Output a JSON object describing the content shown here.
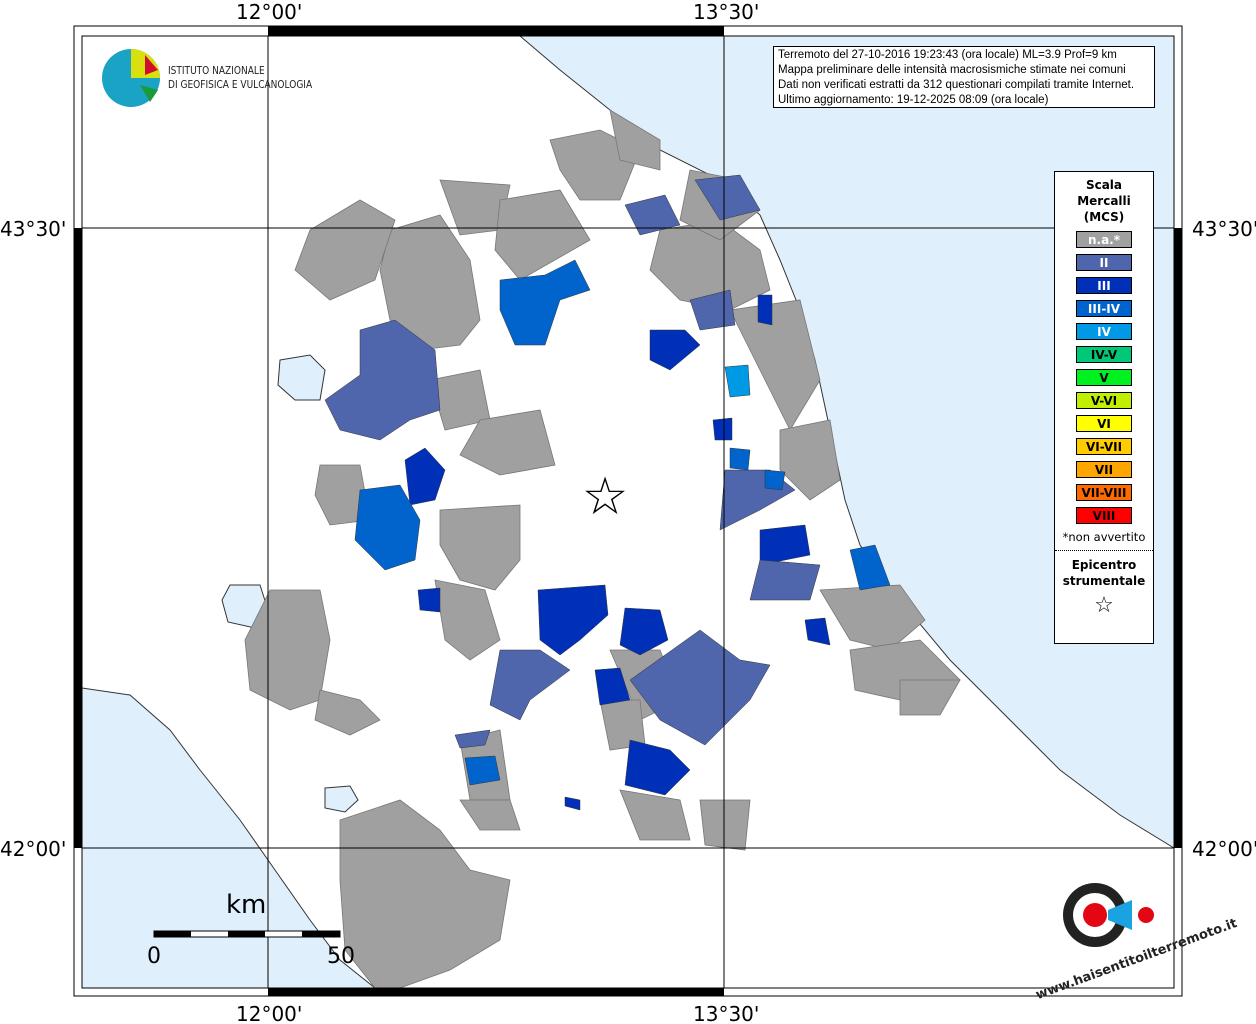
{
  "coords": {
    "lon_left": "12°00'",
    "lon_right": "13°30'",
    "lat_top": "43°30'",
    "lat_bottom": "42°00'"
  },
  "info": {
    "lines": [
      "Terremoto del 27-10-2016 19:23:43 (ora locale) ML=3.9 Prof=9 km",
      "Mappa preliminare delle intensità macrosismiche stimate nei comuni",
      "Dati non verificati estratti da 312 questionari compilati tramite Internet.",
      "Ultimo aggiornamento: 19-12-2025 08:09 (ora locale)"
    ]
  },
  "logo": {
    "line1": "ISTITUTO NAZIONALE",
    "line2": "DI GEOFISICA E VULCANOLOGIA",
    "hst": "www.haisentitoilterremoto.it"
  },
  "legend": {
    "title": [
      "Scala",
      "Mercalli",
      "(MCS)"
    ],
    "items": [
      {
        "label": "n.a.*",
        "color": "#a0a0a0",
        "text": "#fff"
      },
      {
        "label": "II",
        "color": "#4f66ad",
        "text": "#fff"
      },
      {
        "label": "III",
        "color": "#0030b8",
        "text": "#fff"
      },
      {
        "label": "III-IV",
        "color": "#0064cc",
        "text": "#fff"
      },
      {
        "label": "IV",
        "color": "#0099e6",
        "text": "#fff"
      },
      {
        "label": "IV-V",
        "color": "#00c878",
        "text": "#000"
      },
      {
        "label": "V",
        "color": "#00f020",
        "text": "#000"
      },
      {
        "label": "V-VI",
        "color": "#c0f000",
        "text": "#000"
      },
      {
        "label": "VI",
        "color": "#ffff00",
        "text": "#000"
      },
      {
        "label": "VI-VII",
        "color": "#ffcc00",
        "text": "#000"
      },
      {
        "label": "VII",
        "color": "#ffa500",
        "text": "#000"
      },
      {
        "label": "VII-VIII",
        "color": "#ff6a00",
        "text": "#000"
      },
      {
        "label": "VIII",
        "color": "#ff0000",
        "text": "#000"
      }
    ],
    "note": "*non avvertito",
    "epicenter": [
      "Epicentro",
      "strumentale"
    ],
    "star": "☆"
  },
  "scale": {
    "unit": "km",
    "zero": "0",
    "max": "50"
  },
  "colors": {
    "sea": "#dff0fc",
    "land": "#ffffff",
    "na": "#a0a0a0"
  }
}
